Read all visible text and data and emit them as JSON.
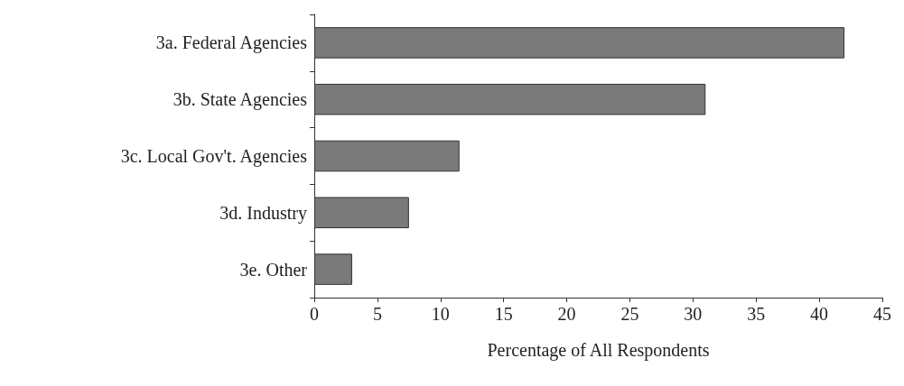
{
  "chart_data": {
    "type": "bar",
    "orientation": "horizontal",
    "xlabel": "Percentage of All Respondents",
    "categories": [
      "3a. Federal Agencies",
      "3b. State Agencies",
      "3c. Local Gov't. Agencies",
      "3d. Industry",
      "3e. Other"
    ],
    "values": [
      42,
      31,
      11.5,
      7.5,
      3
    ],
    "color": "#7a7a7a",
    "xlim": [
      0,
      45
    ],
    "xticks": [
      0,
      5,
      10,
      15,
      20,
      25,
      30,
      35,
      40,
      45
    ],
    "grid": false
  }
}
